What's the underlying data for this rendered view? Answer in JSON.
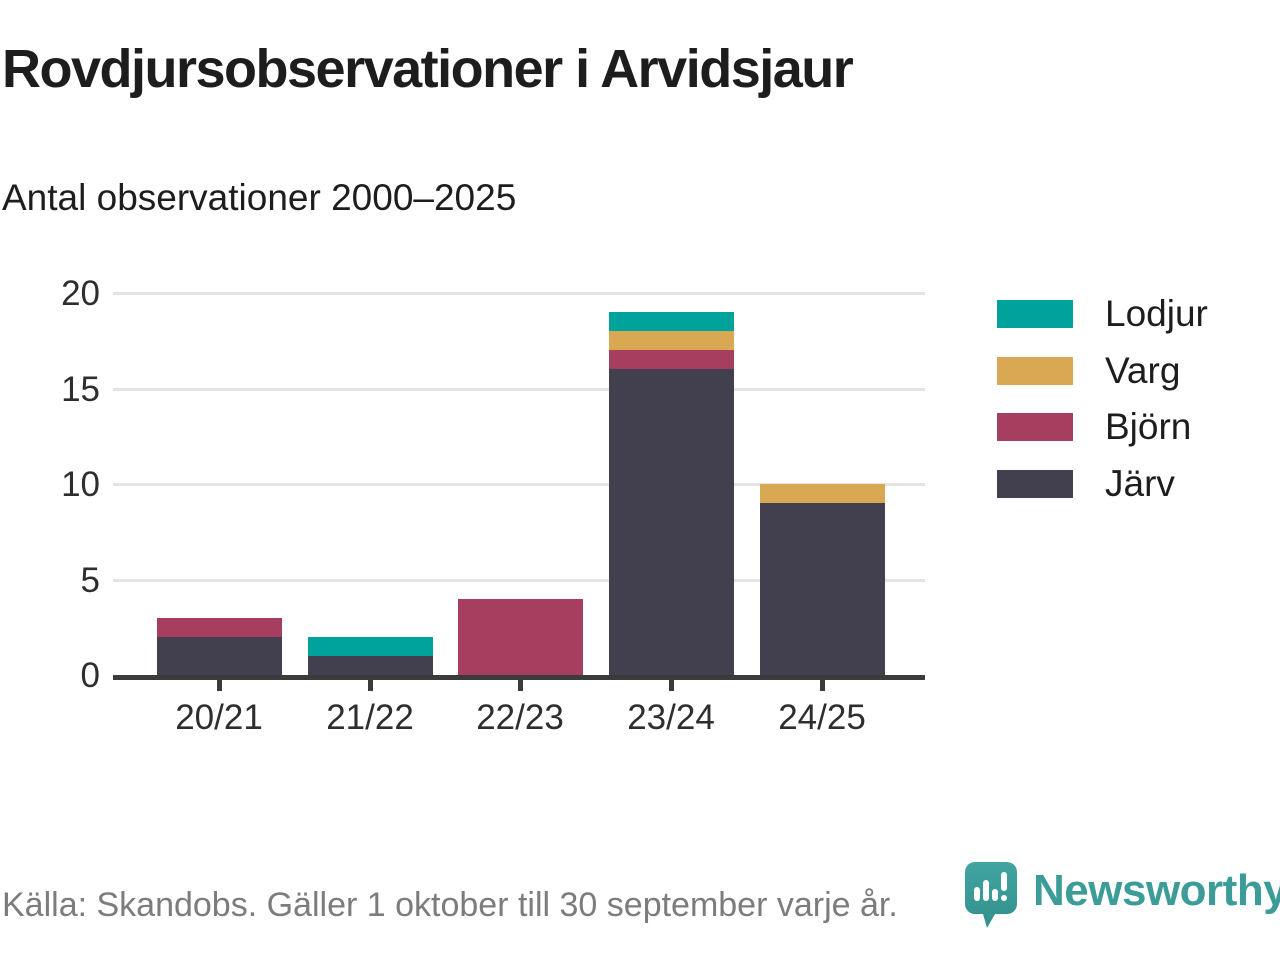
{
  "title": "Rovdjursobservationer i Arvidsjaur",
  "subtitle": "Antal observationer 2000–2025",
  "footer": {
    "source": "Källa: Skandobs. Gäller 1 oktober till 30 september varje år.",
    "brand": "Newsworthy"
  },
  "colors": {
    "axis": "#3b3b3b",
    "grid": "#e4e4e4",
    "text": "#1d1d1d",
    "muted_text": "#7c7c7c",
    "brand_teal": "#3c9d98"
  },
  "chart_data": {
    "type": "bar",
    "stacked": true,
    "title": "Rovdjursobservationer i Arvidsjaur",
    "subtitle": "Antal observationer 2000–2025",
    "categories": [
      "20/21",
      "21/22",
      "22/23",
      "23/24",
      "24/25"
    ],
    "series": [
      {
        "name": "Järv",
        "color": "#423f4e",
        "values": [
          2,
          1,
          0,
          16,
          9
        ]
      },
      {
        "name": "Björn",
        "color": "#a63e60",
        "values": [
          1,
          0,
          4,
          1,
          0
        ]
      },
      {
        "name": "Varg",
        "color": "#d9a853",
        "values": [
          0,
          0,
          0,
          1,
          1
        ]
      },
      {
        "name": "Lodjur",
        "color": "#00a39b",
        "values": [
          0,
          1,
          0,
          1,
          0
        ]
      }
    ],
    "totals": [
      3,
      2,
      4,
      19,
      10
    ],
    "legend": [
      "Lodjur",
      "Varg",
      "Björn",
      "Järv"
    ],
    "legend_position": "right",
    "yticks": [
      0,
      5,
      10,
      15,
      20
    ],
    "ylim": [
      0,
      20
    ],
    "grid": true,
    "xlabel": "",
    "ylabel": ""
  }
}
